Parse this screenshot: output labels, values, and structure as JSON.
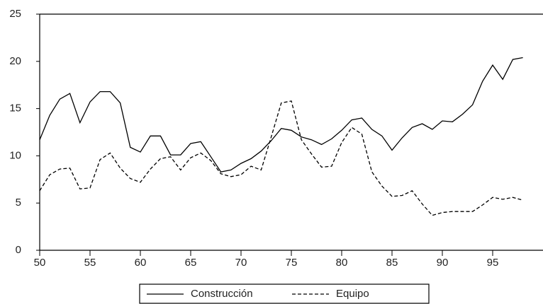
{
  "chart_data": {
    "type": "line",
    "x": [
      50,
      51,
      52,
      53,
      54,
      55,
      56,
      57,
      58,
      59,
      60,
      61,
      62,
      63,
      64,
      65,
      66,
      67,
      68,
      69,
      70,
      71,
      72,
      73,
      74,
      75,
      76,
      77,
      78,
      79,
      80,
      81,
      82,
      83,
      84,
      85,
      86,
      87,
      88,
      89,
      90,
      91,
      92,
      93,
      94,
      95,
      96,
      97,
      98
    ],
    "series": [
      {
        "name": "Construcción",
        "color": "#000000",
        "style": "solid",
        "values": [
          11.7,
          14.3,
          16.0,
          16.6,
          13.5,
          15.7,
          16.8,
          16.8,
          15.6,
          10.9,
          10.4,
          12.1,
          12.1,
          10.1,
          10.1,
          11.3,
          11.5,
          9.9,
          8.3,
          8.5,
          9.2,
          9.7,
          10.5,
          11.6,
          12.9,
          12.7,
          12.0,
          11.7,
          11.2,
          11.8,
          12.7,
          13.8,
          14.0,
          12.8,
          12.1,
          10.6,
          11.9,
          13.0,
          13.4,
          12.8,
          13.7,
          13.6,
          14.4,
          15.4,
          17.9,
          19.6,
          18.1,
          20.2,
          20.4
        ]
      },
      {
        "name": "Equipo",
        "color": "#000000",
        "style": "dashed",
        "values": [
          6.3,
          8.0,
          8.6,
          8.7,
          6.5,
          6.6,
          9.6,
          10.3,
          8.7,
          7.6,
          7.2,
          8.6,
          9.7,
          9.9,
          8.5,
          9.8,
          10.3,
          9.5,
          8.1,
          7.8,
          8.0,
          8.9,
          8.5,
          12.0,
          15.6,
          15.8,
          11.7,
          10.2,
          8.8,
          8.9,
          11.4,
          13.0,
          12.3,
          8.3,
          6.8,
          5.7,
          5.8,
          6.3,
          4.9,
          3.7,
          4.0,
          4.1,
          4.1,
          4.1,
          4.8,
          5.6,
          5.4,
          5.6,
          5.3
        ]
      }
    ],
    "xlim": [
      50,
      100
    ],
    "xticks": [
      50,
      55,
      60,
      65,
      70,
      75,
      80,
      85,
      90,
      95
    ],
    "ylim": [
      0,
      25
    ],
    "yticks": [
      0,
      5,
      10,
      15,
      20,
      25
    ],
    "grid": false,
    "legend": "bottom"
  }
}
